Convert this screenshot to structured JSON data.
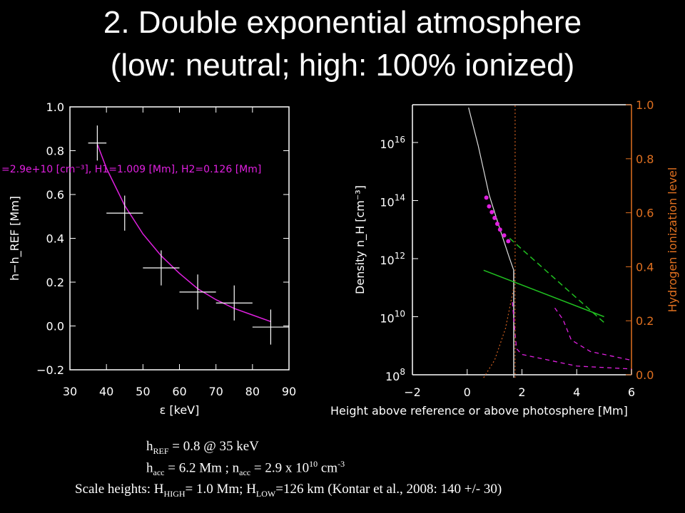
{
  "slide": {
    "title_line1": "2. Double exponential atmosphere",
    "title_line2": "(low: neutral; high: 100% ionized)"
  },
  "captions": {
    "line1_a": "h",
    "line1_sub": "REF",
    "line1_b": " = 0.8  @ 35 keV",
    "line2_a": "h",
    "line2_sub1": "acc",
    "line2_b": " =  6.2 Mm ; n",
    "line2_sub2": "acc",
    "line2_c": " = 2.9 x 10",
    "line2_sup1": "10",
    "line2_d": " cm",
    "line2_sup2": "-3",
    "line3_a": "Scale heights: H",
    "line3_sub1": "HIGH",
    "line3_b": "= 1.0 Mm; H",
    "line3_sub2": "LOW",
    "line3_c": "=126 km (Kontar et al., 2008: 140 +/- 30)"
  },
  "chart_data": [
    {
      "type": "scatter",
      "xlabel": "ε [keV]",
      "ylabel": "h−h_REF [Mm]",
      "xlim": [
        30,
        90
      ],
      "ylim": [
        -0.2,
        1.0
      ],
      "x_ticks": [
        "30",
        "40",
        "50",
        "60",
        "70",
        "80",
        "90"
      ],
      "y_ticks": [
        "−0.2",
        "0.0",
        "0.2",
        "0.4",
        "0.6",
        "0.8",
        "1.0"
      ],
      "annotation": "=2.9e+10 [cm⁻³], H1=1.009 [Mm], H2=0.126 [Mm]",
      "points": [
        {
          "x": 37.5,
          "y": 0.835,
          "xerr": 2.5,
          "yerr": 0.08
        },
        {
          "x": 45,
          "y": 0.515,
          "xerr": 5,
          "yerr": 0.08
        },
        {
          "x": 55,
          "y": 0.265,
          "xerr": 5,
          "yerr": 0.08
        },
        {
          "x": 65,
          "y": 0.155,
          "xerr": 5,
          "yerr": 0.08
        },
        {
          "x": 75,
          "y": 0.105,
          "xerr": 5,
          "yerr": 0.08
        },
        {
          "x": 85,
          "y": -0.005,
          "xerr": 5,
          "yerr": 0.08
        }
      ],
      "fit": {
        "x": [
          37.5,
          40,
          45,
          50,
          55,
          60,
          65,
          70,
          75,
          80,
          85
        ],
        "y": [
          0.83,
          0.72,
          0.55,
          0.42,
          0.32,
          0.24,
          0.17,
          0.12,
          0.08,
          0.05,
          0.02
        ]
      },
      "colors": {
        "data": "#ffffff",
        "fit": "#e020e0"
      }
    },
    {
      "type": "line",
      "xlabel": "Height above reference or above photosphere [Mm]",
      "ylabel": "Density n_H [cm⁻³]",
      "ylabel_right": "Hydrogen ionization level",
      "xlim": [
        -2,
        6
      ],
      "ylim_log10": [
        8,
        17.3
      ],
      "ylim_right": [
        0,
        1.0
      ],
      "x_ticks": [
        "−2",
        "0",
        "2",
        "4",
        "6"
      ],
      "y_ticks_log10": [
        8,
        10,
        12,
        14,
        16
      ],
      "y_ticks_right": [
        "0.0",
        "0.2",
        "0.4",
        "0.6",
        "0.8",
        "1.0"
      ],
      "series": [
        {
          "style": "white-solid",
          "x": [
            0.05,
            0.4,
            0.8,
            1.2,
            1.55,
            1.7
          ],
          "log10_y": [
            17.2,
            15.9,
            14.2,
            13.0,
            12.0,
            11.6
          ]
        },
        {
          "style": "white-vertical",
          "x": [
            1.7,
            1.7
          ],
          "log10_y": [
            11.6,
            7.9
          ]
        },
        {
          "style": "green-dashed",
          "x": [
            1.55,
            5.0
          ],
          "log10_y": [
            12.7,
            9.8
          ]
        },
        {
          "style": "green-solid",
          "x": [
            0.6,
            5.0
          ],
          "log10_y": [
            11.6,
            10.0
          ]
        },
        {
          "style": "magenta-dashed",
          "x": [
            1.65,
            1.8,
            2.0,
            3.0,
            4.0,
            6.0
          ],
          "log10_y": [
            10.5,
            8.9,
            8.7,
            8.5,
            8.3,
            8.2
          ]
        },
        {
          "style": "magenta-dashed",
          "x": [
            3.2,
            3.5,
            3.8,
            4.5,
            6.0
          ],
          "log10_y": [
            10.3,
            9.9,
            9.2,
            8.8,
            8.5
          ]
        },
        {
          "style": "magenta-points",
          "x": [
            0.7,
            0.8,
            0.9,
            1.0,
            1.1,
            1.2,
            1.35,
            1.5
          ],
          "log10_y": [
            14.1,
            13.8,
            13.6,
            13.4,
            13.2,
            13.0,
            12.8,
            12.6
          ]
        },
        {
          "style": "orange-dotted",
          "x": [
            1.75,
            1.75
          ],
          "log10_y": [
            7.9,
            17.3
          ]
        },
        {
          "style": "orange-dotted",
          "x": [
            0.6,
            1.0,
            1.4,
            1.7
          ],
          "log10_y": [
            7.9,
            8.5,
            9.6,
            11.0
          ]
        }
      ],
      "colors": {
        "axis": "#ffffff",
        "right_axis": "#e07020",
        "green": "#20c020",
        "magenta": "#e020e0",
        "orange": "#d06020"
      }
    }
  ]
}
